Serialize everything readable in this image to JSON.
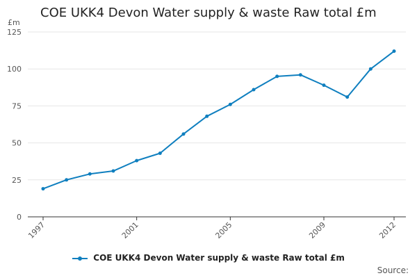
{
  "chart_data": {
    "type": "line",
    "title": "COE UKK4 Devon Water supply & waste Raw total £m",
    "unit": "£m",
    "x": [
      1997,
      1998,
      1999,
      2000,
      2001,
      2002,
      2003,
      2004,
      2005,
      2006,
      2007,
      2008,
      2009,
      2010,
      2011,
      2012
    ],
    "x_tick_labels": [
      "1997",
      "2001",
      "2005",
      "2009",
      "2012"
    ],
    "y_ticks": [
      0,
      25,
      50,
      75,
      100,
      125
    ],
    "ylim": [
      0,
      125
    ],
    "grid": true,
    "legend_position": "bottom",
    "series": [
      {
        "name": "COE UKK4 Devon Water supply & waste Raw total £m",
        "values": [
          19,
          25,
          29,
          31,
          38,
          43,
          56,
          68,
          76,
          86,
          95,
          96,
          89,
          81,
          100,
          112
        ]
      }
    ],
    "colors": {
      "series": "#0f7fbf",
      "grid": "#e6e6e6",
      "axis": "#333333"
    }
  },
  "footer": {
    "source": "Source:"
  }
}
